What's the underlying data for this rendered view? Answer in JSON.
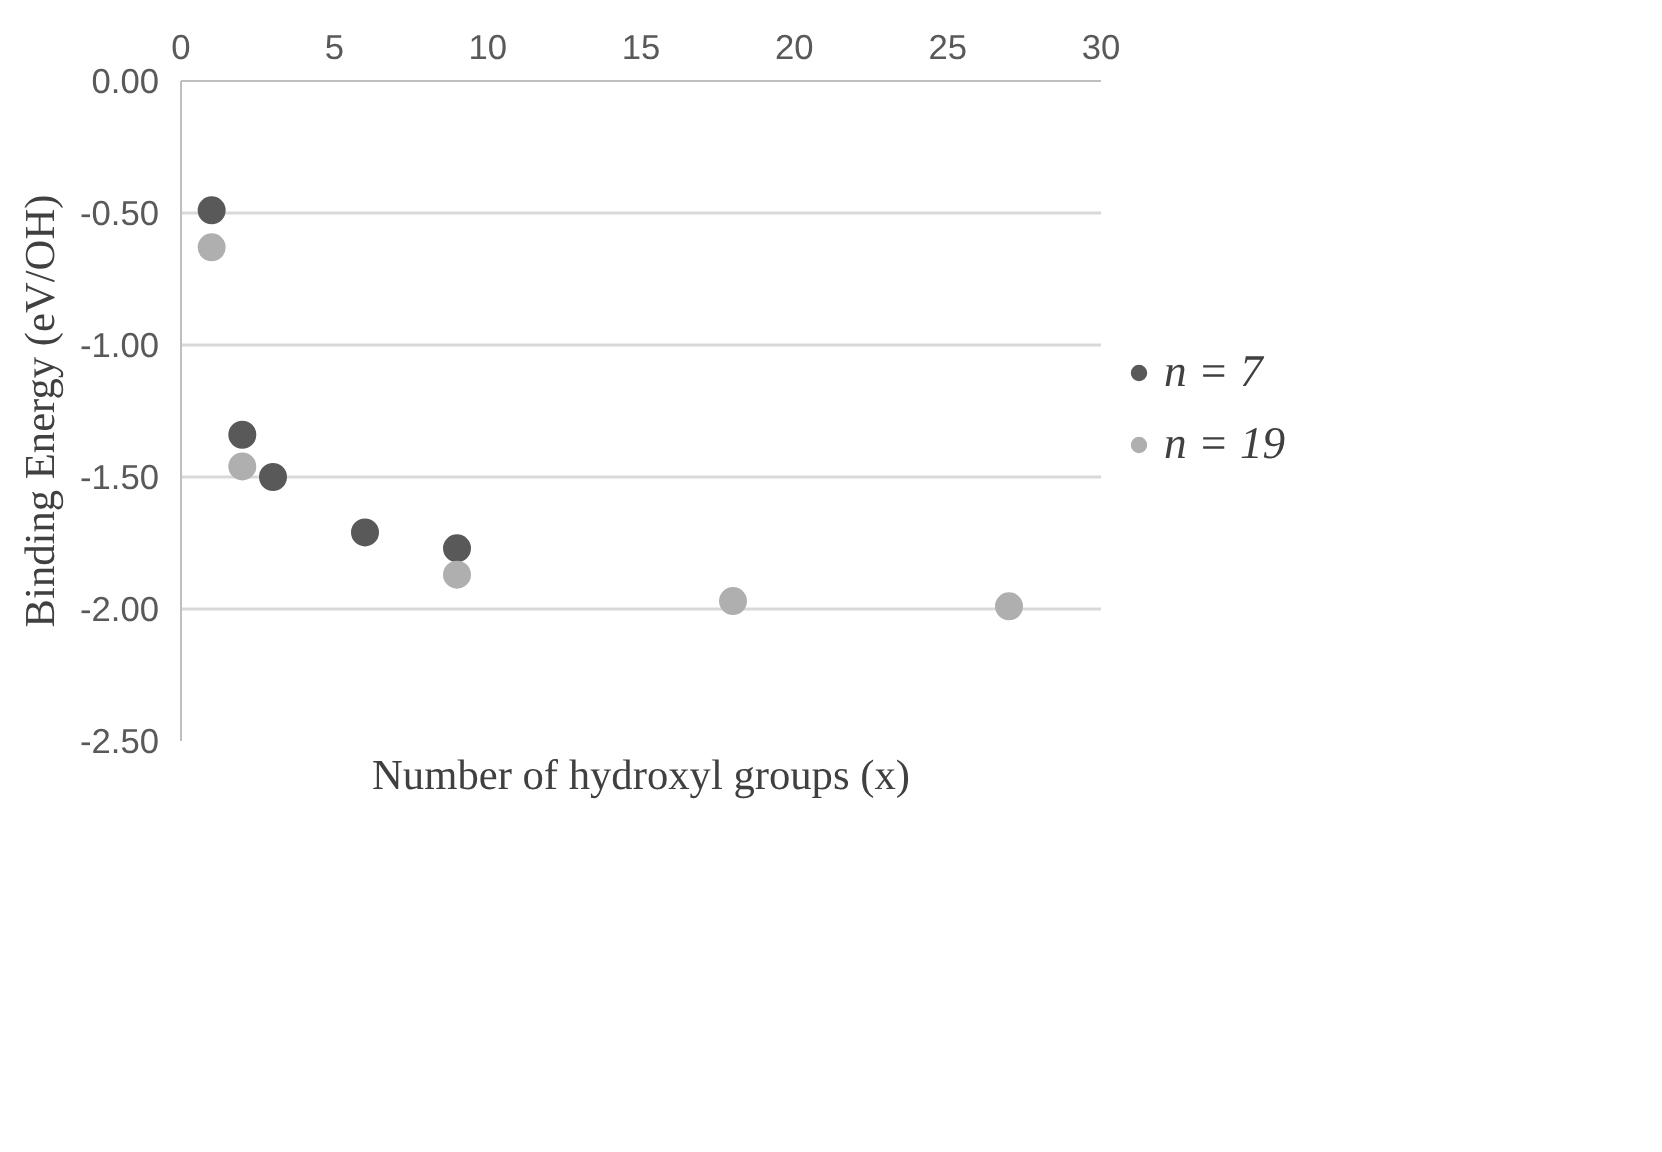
{
  "chart_data": {
    "type": "scatter",
    "xlabel": "Number of hydroxyl groups (x)",
    "ylabel": "Binding Energy (eV/OH)",
    "xlim": [
      0,
      30
    ],
    "xticks": [
      0,
      5,
      10,
      15,
      20,
      25,
      30
    ],
    "ylim": [
      -2.5,
      0
    ],
    "yticks": [
      {
        "value": 0,
        "label": "0.00"
      },
      {
        "value": -0.5,
        "label": "-0.50"
      },
      {
        "value": -1,
        "label": "-1.00"
      },
      {
        "value": -1.5,
        "label": "-1.50"
      },
      {
        "value": -2,
        "label": "-2.00"
      },
      {
        "value": -2.5,
        "label": "-2.50"
      }
    ],
    "grid": "y",
    "legend": "right",
    "marker": "circle",
    "series": [
      {
        "name": "n = 7",
        "color": "#595959",
        "x": [
          1,
          2,
          3,
          6,
          9
        ],
        "values": [
          -0.49,
          -1.34,
          -1.5,
          -1.71,
          -1.77
        ]
      },
      {
        "name": "n = 19",
        "color": "#afafaf",
        "x": [
          1,
          2,
          9,
          18,
          27
        ],
        "values": [
          -0.63,
          -1.46,
          -1.87,
          -1.97,
          -1.99
        ]
      }
    ]
  }
}
